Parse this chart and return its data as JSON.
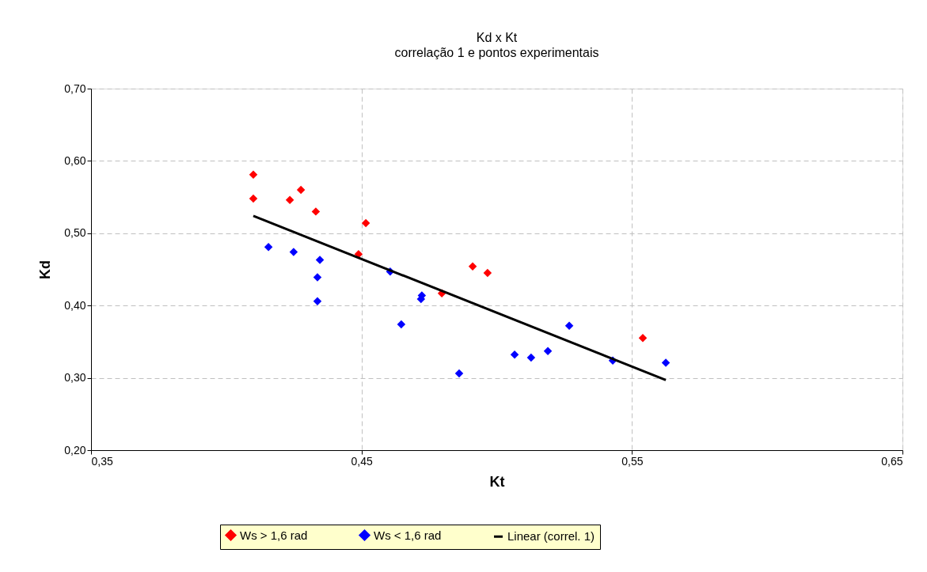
{
  "chart_data": {
    "type": "scatter",
    "title": "Kd x Kt",
    "subtitle": "correlação 1 e pontos experimentais",
    "xlabel": "Kt",
    "ylabel": "Kd",
    "series": [
      {
        "name": "Ws > 1,6 rad",
        "color": "#ff0000",
        "marker": "diamond",
        "x": [
          0.41,
          0.41,
          0.4235,
          0.4276,
          0.4331,
          0.4516,
          0.4489,
          0.4911,
          0.4966,
          0.4797,
          0.554
        ],
        "values": [
          0.581,
          0.548,
          0.546,
          0.56,
          0.53,
          0.514,
          0.471,
          0.454,
          0.445,
          0.417,
          0.355
        ]
      },
      {
        "name": "Ws < 1,6 rad",
        "color": "#0000ff",
        "marker": "diamond",
        "x": [
          0.4156,
          0.4249,
          0.4346,
          0.4337,
          0.4337,
          0.4606,
          0.4723,
          0.472,
          0.4647,
          0.4861,
          0.5066,
          0.5127,
          0.5189,
          0.5268,
          0.5429,
          0.5625
        ],
        "values": [
          0.481,
          0.474,
          0.463,
          0.439,
          0.406,
          0.447,
          0.414,
          0.409,
          0.374,
          0.306,
          0.332,
          0.328,
          0.337,
          0.372,
          0.324,
          0.321
        ]
      },
      {
        "name": "Linear (correl. 1)",
        "color": "#000000",
        "type": "line",
        "marker": "none",
        "x": [
          0.41,
          0.5625
        ],
        "values": [
          0.524,
          0.297
        ]
      }
    ],
    "xlim": [
      0.35,
      0.65
    ],
    "xticks": [
      {
        "value": 0.35,
        "label": "0,35"
      },
      {
        "value": 0.45,
        "label": "0,45"
      },
      {
        "value": 0.55,
        "label": "0,55"
      },
      {
        "value": 0.65,
        "label": "0,65"
      }
    ],
    "ylim": [
      0.2,
      0.7
    ],
    "yticks": [
      {
        "value": 0.2,
        "label": "0,20"
      },
      {
        "value": 0.3,
        "label": "0,30"
      },
      {
        "value": 0.4,
        "label": "0,40"
      },
      {
        "value": 0.5,
        "label": "0,50"
      },
      {
        "value": 0.6,
        "label": "0,60"
      },
      {
        "value": 0.7,
        "label": "0,70"
      }
    ],
    "grid": true,
    "legend": "bottom"
  }
}
